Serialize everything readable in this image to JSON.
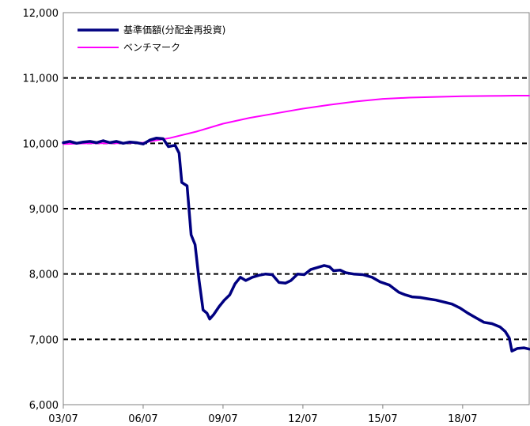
{
  "chart_data": {
    "type": "line",
    "title": "",
    "xlabel": "",
    "ylabel": "",
    "ylim": [
      6000,
      12000
    ],
    "xlim": [
      2003.5,
      2021.0
    ],
    "y_ticks": [
      6000,
      7000,
      8000,
      9000,
      10000,
      11000,
      12000
    ],
    "y_tick_labels": [
      "6,000",
      "7,000",
      "8,000",
      "9,000",
      "10,000",
      "11,000",
      "12,000"
    ],
    "x_ticks": [
      2003.5,
      2006.5,
      2009.5,
      2012.5,
      2015.5,
      2018.5
    ],
    "x_tick_labels": [
      "03/07",
      "06/07",
      "09/07",
      "12/07",
      "15/07",
      "18/07"
    ],
    "grid": {
      "horizontal": true,
      "style": "dashed",
      "vertical": false
    },
    "legend_position": "top-left",
    "series": [
      {
        "name": "基準価額(分配金再投資)",
        "color": "#000080",
        "line_width": "thick",
        "points": [
          [
            2003.5,
            10010
          ],
          [
            2003.75,
            10030
          ],
          [
            2004.0,
            10000
          ],
          [
            2004.25,
            10020
          ],
          [
            2004.5,
            10030
          ],
          [
            2004.75,
            10010
          ],
          [
            2005.0,
            10040
          ],
          [
            2005.25,
            10010
          ],
          [
            2005.5,
            10030
          ],
          [
            2005.75,
            10000
          ],
          [
            2006.0,
            10020
          ],
          [
            2006.25,
            10010
          ],
          [
            2006.5,
            9990
          ],
          [
            2006.75,
            10050
          ],
          [
            2007.0,
            10080
          ],
          [
            2007.25,
            10070
          ],
          [
            2007.45,
            9950
          ],
          [
            2007.7,
            9970
          ],
          [
            2007.85,
            9850
          ],
          [
            2007.95,
            9400
          ],
          [
            2008.15,
            9350
          ],
          [
            2008.3,
            8600
          ],
          [
            2008.45,
            8450
          ],
          [
            2008.6,
            7900
          ],
          [
            2008.75,
            7450
          ],
          [
            2008.9,
            7400
          ],
          [
            2009.0,
            7310
          ],
          [
            2009.15,
            7380
          ],
          [
            2009.35,
            7500
          ],
          [
            2009.55,
            7600
          ],
          [
            2009.75,
            7680
          ],
          [
            2009.95,
            7850
          ],
          [
            2010.15,
            7950
          ],
          [
            2010.35,
            7900
          ],
          [
            2010.6,
            7950
          ],
          [
            2010.85,
            7980
          ],
          [
            2011.1,
            8000
          ],
          [
            2011.35,
            7990
          ],
          [
            2011.6,
            7870
          ],
          [
            2011.85,
            7860
          ],
          [
            2012.05,
            7900
          ],
          [
            2012.3,
            8000
          ],
          [
            2012.55,
            7990
          ],
          [
            2012.8,
            8070
          ],
          [
            2013.05,
            8100
          ],
          [
            2013.3,
            8130
          ],
          [
            2013.5,
            8110
          ],
          [
            2013.65,
            8050
          ],
          [
            2013.9,
            8060
          ],
          [
            2014.1,
            8020
          ],
          [
            2014.4,
            8000
          ],
          [
            2014.75,
            7990
          ],
          [
            2015.1,
            7950
          ],
          [
            2015.4,
            7880
          ],
          [
            2015.75,
            7830
          ],
          [
            2016.1,
            7720
          ],
          [
            2016.35,
            7680
          ],
          [
            2016.6,
            7650
          ],
          [
            2016.9,
            7640
          ],
          [
            2017.2,
            7620
          ],
          [
            2017.5,
            7600
          ],
          [
            2017.8,
            7570
          ],
          [
            2018.1,
            7540
          ],
          [
            2018.4,
            7480
          ],
          [
            2018.7,
            7400
          ],
          [
            2019.0,
            7330
          ],
          [
            2019.3,
            7260
          ],
          [
            2019.6,
            7240
          ],
          [
            2019.9,
            7190
          ],
          [
            2020.1,
            7120
          ],
          [
            2020.25,
            7020
          ],
          [
            2020.35,
            6820
          ],
          [
            2020.55,
            6860
          ],
          [
            2020.8,
            6870
          ],
          [
            2021.0,
            6850
          ]
        ]
      },
      {
        "name": "ベンチマーク",
        "color": "#ff00ff",
        "line_width": "thin",
        "points": [
          [
            2003.5,
            9990
          ],
          [
            2004.5,
            10000
          ],
          [
            2005.5,
            10000
          ],
          [
            2006.5,
            10010
          ],
          [
            2007.5,
            10080
          ],
          [
            2008.5,
            10180
          ],
          [
            2009.5,
            10300
          ],
          [
            2010.5,
            10390
          ],
          [
            2011.5,
            10460
          ],
          [
            2012.5,
            10530
          ],
          [
            2013.5,
            10590
          ],
          [
            2014.5,
            10640
          ],
          [
            2015.5,
            10680
          ],
          [
            2016.5,
            10700
          ],
          [
            2017.5,
            10710
          ],
          [
            2018.5,
            10720
          ],
          [
            2019.5,
            10725
          ],
          [
            2020.5,
            10730
          ],
          [
            2021.0,
            10730
          ]
        ]
      }
    ]
  }
}
